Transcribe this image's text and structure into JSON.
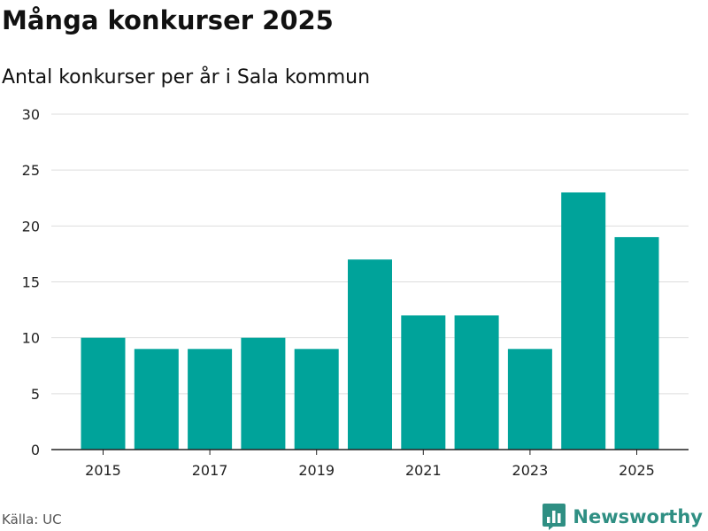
{
  "header": {
    "title": "Många konkurser 2025",
    "subtitle": "Antal konkurser per år i Sala kommun"
  },
  "footer": {
    "source": "Källa: UC",
    "brand": "Newsworthy",
    "brand_icon": "bar-chart-logo-icon"
  },
  "colors": {
    "bar": "#00a39a",
    "brand": "#2f8f83",
    "grid": "#dddddd",
    "axis": "#222222"
  },
  "chart_data": {
    "type": "bar",
    "categories": [
      "2015",
      "2016",
      "2017",
      "2018",
      "2019",
      "2020",
      "2021",
      "2022",
      "2023",
      "2024",
      "2025"
    ],
    "values": [
      10,
      9,
      9,
      10,
      9,
      17,
      12,
      12,
      9,
      23,
      19
    ],
    "x_tick_labels": [
      "2015",
      "2017",
      "2019",
      "2021",
      "2023",
      "2025"
    ],
    "y_ticks": [
      0,
      5,
      10,
      15,
      20,
      25,
      30
    ],
    "ylim": [
      0,
      30
    ],
    "title": "Många konkurser 2025",
    "subtitle": "Antal konkurser per år i Sala kommun",
    "xlabel": "",
    "ylabel": "",
    "grid": true,
    "legend": "none"
  }
}
